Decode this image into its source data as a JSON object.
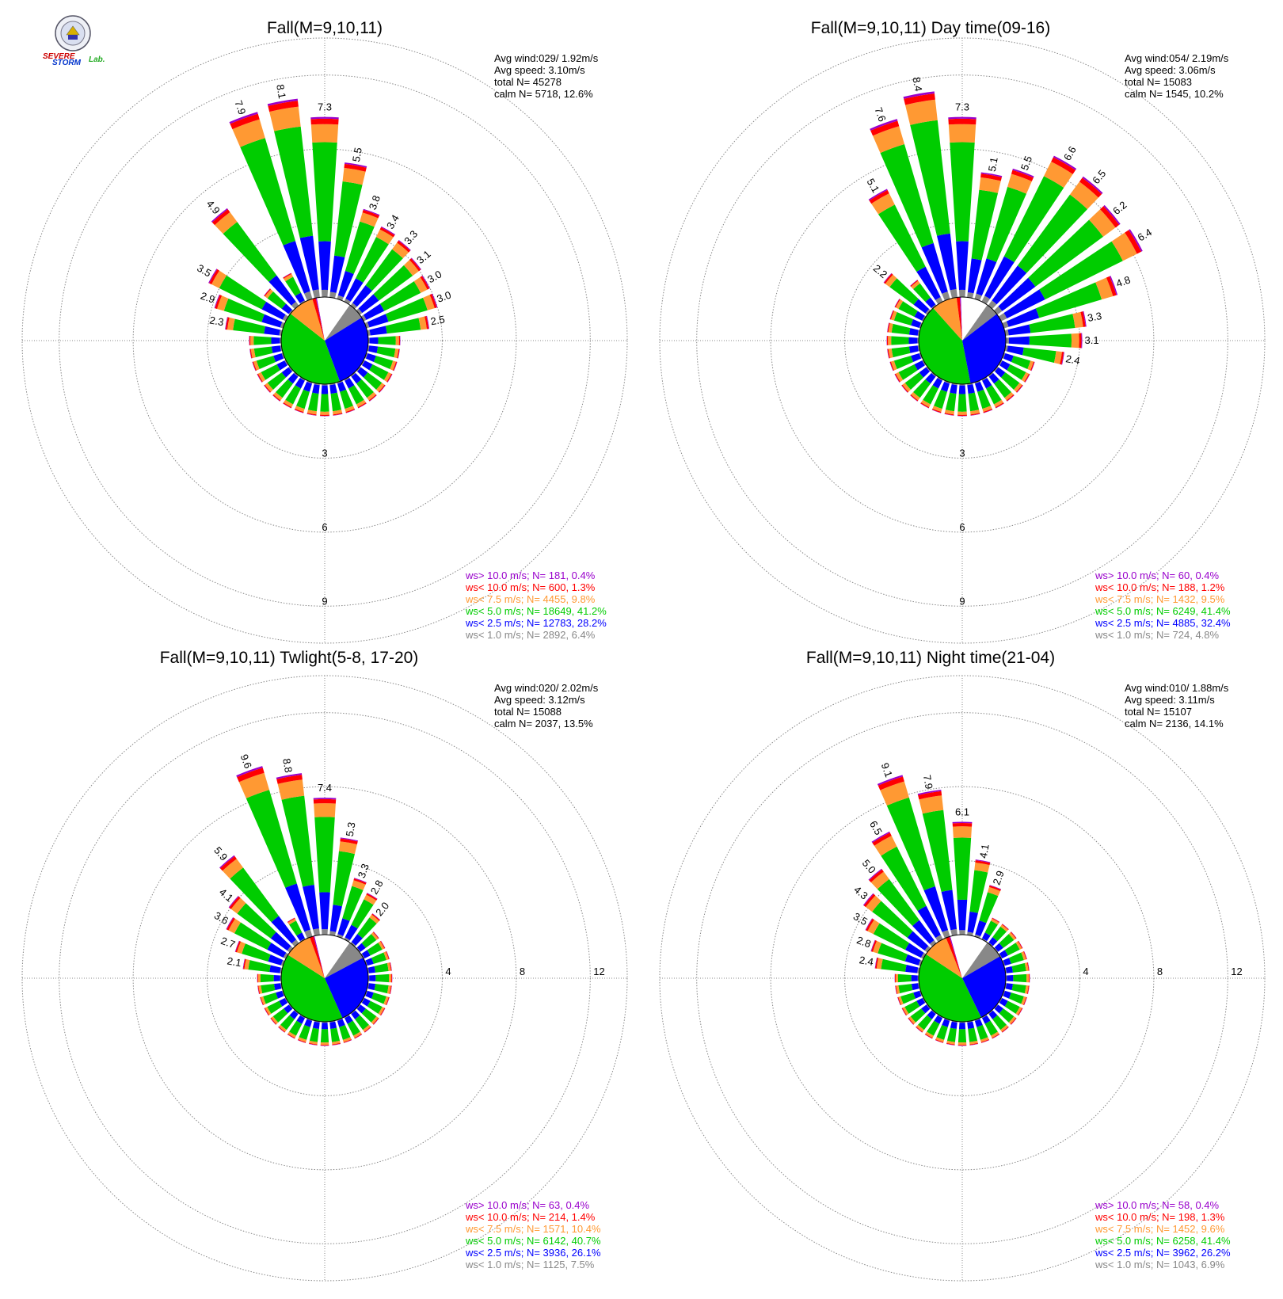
{
  "logo": {
    "word1": "SEVERE",
    "word2": "STORM",
    "word3": "Lab."
  },
  "colors": {
    "gt10": "#9900cc",
    "lt10": "#ff0000",
    "lt75": "#ff9933",
    "lt5": "#00cc00",
    "lt25": "#0000ff",
    "lt1": "#888888",
    "calm": "#ffffff",
    "grid": "#888888"
  },
  "chart_data": [
    {
      "type": "wind-rose",
      "title": "Fall(M=9,10,11)",
      "stats": {
        "avg_wind": "Avg wind:029/ 1.92m/s",
        "avg_speed": "Avg speed: 3.10m/s",
        "total": "total N=      45278",
        "calm": "calm N=   5718,  12.6%"
      },
      "ring_labels": [
        "3",
        "6",
        "9"
      ],
      "ring_values": [
        3,
        6,
        9
      ],
      "rmax": 10.5,
      "labeled_bars": [
        {
          "dir": 280,
          "value": 2.3,
          "label": "2.3"
        },
        {
          "dir": 290,
          "value": 2.9,
          "label": "2.9"
        },
        {
          "dir": 300,
          "value": 3.5,
          "label": "3.5"
        },
        {
          "dir": 320,
          "value": 4.9,
          "label": "4.9"
        },
        {
          "dir": 340,
          "value": 7.9,
          "label": "7.9"
        },
        {
          "dir": 350,
          "value": 8.1,
          "label": "8.1"
        },
        {
          "dir": 0,
          "value": 7.3,
          "label": "7.3"
        },
        {
          "dir": 10,
          "value": 5.5,
          "label": "5.5"
        },
        {
          "dir": 20,
          "value": 3.8,
          "label": "3.8"
        },
        {
          "dir": 30,
          "value": 3.4,
          "label": "3.4"
        },
        {
          "dir": 40,
          "value": 3.3,
          "label": "3.3"
        },
        {
          "dir": 50,
          "value": 3.1,
          "label": "3.1"
        },
        {
          "dir": 60,
          "value": 3.0,
          "label": "3.0"
        },
        {
          "dir": 70,
          "value": 3.0,
          "label": "3.0"
        },
        {
          "dir": 80,
          "value": 2.5,
          "label": "2.5"
        }
      ],
      "legend": [
        {
          "text": "ws> 10.0 m/s; N=   181,  0.4%",
          "color": "#9900cc"
        },
        {
          "text": "ws< 10.0 m/s; N=   600,  1.3%",
          "color": "#ff0000"
        },
        {
          "text": "ws<  7.5 m/s; N=  4455,  9.8%",
          "color": "#ff9933"
        },
        {
          "text": "ws<  5.0 m/s; N= 18649, 41.2%",
          "color": "#00cc00"
        },
        {
          "text": "ws<  2.5 m/s; N= 12783, 28.2%",
          "color": "#0000ff"
        },
        {
          "text": "ws<  1.0 m/s; N=  2892,  6.4%",
          "color": "#888888"
        }
      ],
      "class_pct": [
        6.4,
        28.2,
        41.2,
        9.8,
        1.3,
        0.4,
        12.6
      ]
    },
    {
      "type": "wind-rose",
      "title": "Fall(M=9,10,11) Day time(09-16)",
      "stats": {
        "avg_wind": "Avg wind:054/ 2.19m/s",
        "avg_speed": "Avg speed: 3.06m/s",
        "total": "total N=      15083",
        "calm": "calm N=   1545,  10.2%"
      },
      "ring_labels": [
        "3",
        "6",
        "9"
      ],
      "ring_values": [
        3,
        6,
        9
      ],
      "rmax": 10.5,
      "labeled_bars": [
        {
          "dir": 310,
          "value": 2.2,
          "label": "2.2"
        },
        {
          "dir": 330,
          "value": 5.1,
          "label": "5.1"
        },
        {
          "dir": 340,
          "value": 7.6,
          "label": "7.6"
        },
        {
          "dir": 350,
          "value": 8.4,
          "label": "8.4"
        },
        {
          "dir": 0,
          "value": 7.3,
          "label": "7.3"
        },
        {
          "dir": 10,
          "value": 5.1,
          "label": "5.1"
        },
        {
          "dir": 20,
          "value": 5.5,
          "label": "5.5"
        },
        {
          "dir": 30,
          "value": 6.6,
          "label": "6.6"
        },
        {
          "dir": 40,
          "value": 6.5,
          "label": "6.5"
        },
        {
          "dir": 50,
          "value": 6.2,
          "label": "6.2"
        },
        {
          "dir": 60,
          "value": 6.4,
          "label": "6.4"
        },
        {
          "dir": 70,
          "value": 4.8,
          "label": "4.8"
        },
        {
          "dir": 80,
          "value": 3.3,
          "label": "3.3"
        },
        {
          "dir": 90,
          "value": 3.1,
          "label": "3.1"
        },
        {
          "dir": 100,
          "value": 2.4,
          "label": "2.4"
        }
      ],
      "legend": [
        {
          "text": "ws> 10.0 m/s; N=    60,  0.4%",
          "color": "#9900cc"
        },
        {
          "text": "ws< 10.0 m/s; N=   188,  1.2%",
          "color": "#ff0000"
        },
        {
          "text": "ws<  7.5 m/s; N=  1432,  9.5%",
          "color": "#ff9933"
        },
        {
          "text": "ws<  5.0 m/s; N=  6249, 41.4%",
          "color": "#00cc00"
        },
        {
          "text": "ws<  2.5 m/s; N=  4885, 32.4%",
          "color": "#0000ff"
        },
        {
          "text": "ws<  1.0 m/s; N=   724,  4.8%",
          "color": "#888888"
        }
      ],
      "class_pct": [
        4.8,
        32.4,
        41.4,
        9.5,
        1.2,
        0.4,
        10.2
      ]
    },
    {
      "type": "wind-rose",
      "title": "Fall(M=9,10,11) Twlight(5-8, 17-20)",
      "stats": {
        "avg_wind": "Avg wind:020/ 2.02m/s",
        "avg_speed": "Avg speed: 3.12m/s",
        "total": "total N=      15088",
        "calm": "calm N=   2037,  13.5%"
      },
      "ring_labels": [
        "4",
        "8",
        "12"
      ],
      "ring_values": [
        4,
        8,
        12
      ],
      "rmax": 14,
      "labeled_bars": [
        {
          "dir": 280,
          "value": 2.1,
          "label": "2.1"
        },
        {
          "dir": 290,
          "value": 2.7,
          "label": "2.7"
        },
        {
          "dir": 300,
          "value": 3.6,
          "label": "3.6"
        },
        {
          "dir": 310,
          "value": 4.1,
          "label": "4.1"
        },
        {
          "dir": 320,
          "value": 5.9,
          "label": "5.9"
        },
        {
          "dir": 340,
          "value": 9.6,
          "label": "9.6"
        },
        {
          "dir": 350,
          "value": 8.8,
          "label": "8.8"
        },
        {
          "dir": 0,
          "value": 7.4,
          "label": "7.4"
        },
        {
          "dir": 10,
          "value": 5.3,
          "label": "5.3"
        },
        {
          "dir": 20,
          "value": 3.3,
          "label": "3.3"
        },
        {
          "dir": 30,
          "value": 2.8,
          "label": "2.8"
        },
        {
          "dir": 40,
          "value": 2.0,
          "label": "2.0"
        }
      ],
      "legend": [
        {
          "text": "ws> 10.0 m/s; N=    63,  0.4%",
          "color": "#9900cc"
        },
        {
          "text": "ws< 10.0 m/s; N=   214,  1.4%",
          "color": "#ff0000"
        },
        {
          "text": "ws<  7.5 m/s; N=  1571, 10.4%",
          "color": "#ff9933"
        },
        {
          "text": "ws<  5.0 m/s; N=  6142, 40.7%",
          "color": "#00cc00"
        },
        {
          "text": "ws<  2.5 m/s; N=  3936, 26.1%",
          "color": "#0000ff"
        },
        {
          "text": "ws<  1.0 m/s; N=  1125,  7.5%",
          "color": "#888888"
        }
      ],
      "class_pct": [
        7.5,
        26.1,
        40.7,
        10.4,
        1.4,
        0.4,
        13.5
      ]
    },
    {
      "type": "wind-rose",
      "title": "Fall(M=9,10,11) Night time(21-04)",
      "stats": {
        "avg_wind": "Avg wind:010/ 1.88m/s",
        "avg_speed": "Avg speed: 3.11m/s",
        "total": "total N=      15107",
        "calm": "calm N=   2136,  14.1%"
      },
      "ring_labels": [
        "4",
        "8",
        "12"
      ],
      "ring_values": [
        4,
        8,
        12
      ],
      "rmax": 14,
      "labeled_bars": [
        {
          "dir": 280,
          "value": 2.4,
          "label": "2.4"
        },
        {
          "dir": 290,
          "value": 2.8,
          "label": "2.8"
        },
        {
          "dir": 300,
          "value": 3.5,
          "label": "3.5"
        },
        {
          "dir": 310,
          "value": 4.3,
          "label": "4.3"
        },
        {
          "dir": 320,
          "value": 5.0,
          "label": "5.0"
        },
        {
          "dir": 330,
          "value": 6.5,
          "label": "6.5"
        },
        {
          "dir": 340,
          "value": 9.1,
          "label": "9.1"
        },
        {
          "dir": 350,
          "value": 7.9,
          "label": "7.9"
        },
        {
          "dir": 0,
          "value": 6.1,
          "label": "6.1"
        },
        {
          "dir": 10,
          "value": 4.1,
          "label": "4.1"
        },
        {
          "dir": 20,
          "value": 2.9,
          "label": "2.9"
        }
      ],
      "legend": [
        {
          "text": "ws> 10.0 m/s; N=    58,  0.4%",
          "color": "#9900cc"
        },
        {
          "text": "ws< 10.0 m/s; N=   198,  1.3%",
          "color": "#ff0000"
        },
        {
          "text": "ws<  7.5 m/s; N=  1452,  9.6%",
          "color": "#ff9933"
        },
        {
          "text": "ws<  5.0 m/s; N=  6258, 41.4%",
          "color": "#00cc00"
        },
        {
          "text": "ws<  2.5 m/s; N=  3962, 26.2%",
          "color": "#0000ff"
        },
        {
          "text": "ws<  1.0 m/s; N=  1043,  6.9%",
          "color": "#888888"
        }
      ],
      "class_pct": [
        6.9,
        26.2,
        41.4,
        9.6,
        1.3,
        0.4,
        14.1
      ]
    }
  ]
}
